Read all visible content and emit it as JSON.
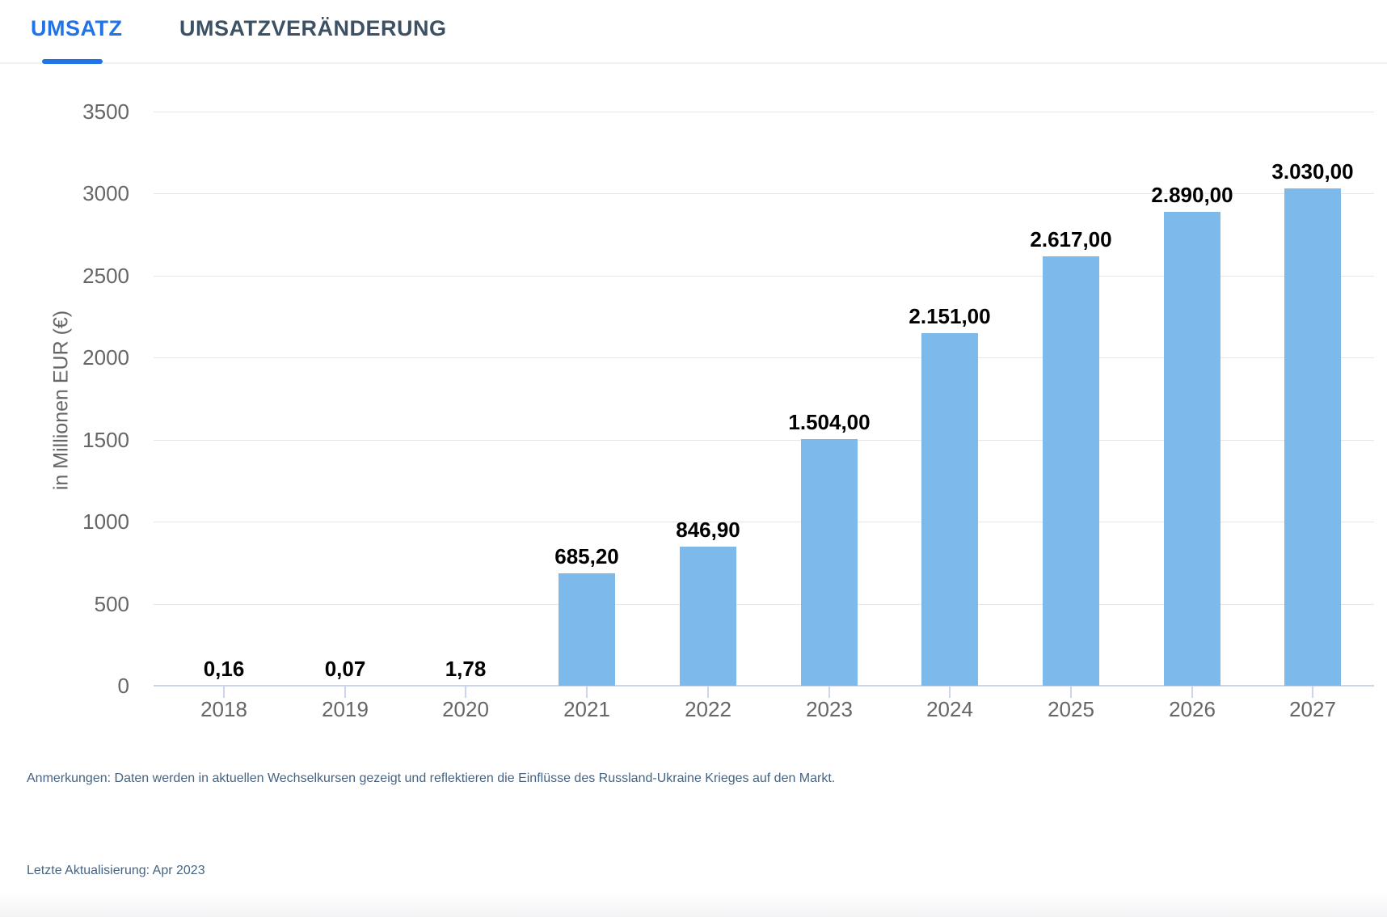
{
  "tabs": [
    {
      "label": "UMSATZ",
      "active": true
    },
    {
      "label": "UMSATZVERÄNDERUNG",
      "active": false
    }
  ],
  "chart_data": {
    "type": "bar",
    "title": "",
    "categories": [
      "2018",
      "2019",
      "2020",
      "2021",
      "2022",
      "2023",
      "2024",
      "2025",
      "2026",
      "2027"
    ],
    "values": [
      0.16,
      0.07,
      1.78,
      685.2,
      846.9,
      1504,
      2151,
      2617,
      2890,
      3030
    ],
    "value_labels": [
      "0,16",
      "0,07",
      "1,78",
      "685,20",
      "846,90",
      "1.504,00",
      "2.151,00",
      "2.617,00",
      "2.890,00",
      "3.030,00"
    ],
    "xlabel": "",
    "ylabel": "in Millionen EUR (€)",
    "ylim": [
      0,
      3500
    ],
    "ytick_step": 500,
    "grid": true,
    "legend": false,
    "bar_color": "#7db9ea",
    "grid_color": "#e6e6e6",
    "axis_color": "#ccd6eb",
    "tick_label_color": "#666666",
    "data_label_color": "#000000"
  },
  "notes": {
    "annotation": "Anmerkungen: Daten werden in aktuellen Wechselkursen gezeigt und reflektieren die Einflüsse des Russland-Ukraine Krieges auf den Markt.",
    "last_update": "Letzte Aktualisierung: Apr 2023"
  },
  "colors": {
    "active_tab": "#2173e8",
    "inactive_tab": "#3d5165",
    "note_text": "#466482"
  }
}
